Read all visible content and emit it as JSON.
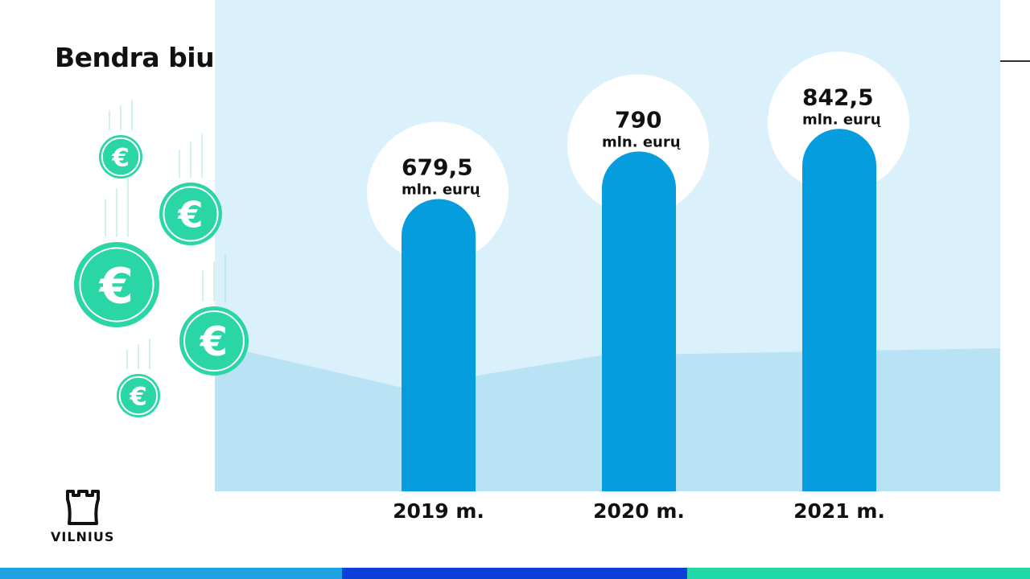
{
  "page": {
    "title": "Bendra biudžeto suma"
  },
  "logo": {
    "text": "VILNIUS",
    "icon": "castle-tower-icon"
  },
  "decor": {
    "coin_icon": "euro-coin-icon",
    "coin_symbol": "€"
  },
  "colors": {
    "bar": "#069ddf",
    "panel": "#daf0fa",
    "panel_wave": "#b9e2f5",
    "coin": "#2ad6a6",
    "footer": [
      "#1ea1e0",
      "#0a3fd8",
      "#22d8a6"
    ]
  },
  "chart_data": {
    "type": "bar",
    "title": "Bendra biudžeto suma",
    "categories": [
      "2019 m.",
      "2020 m.",
      "2021 m."
    ],
    "values": [
      679.5,
      790,
      842.5
    ],
    "value_labels": [
      "679,5",
      "790",
      "842,5"
    ],
    "unit_label": "mln. eurų",
    "grid": false,
    "legend": "none"
  }
}
